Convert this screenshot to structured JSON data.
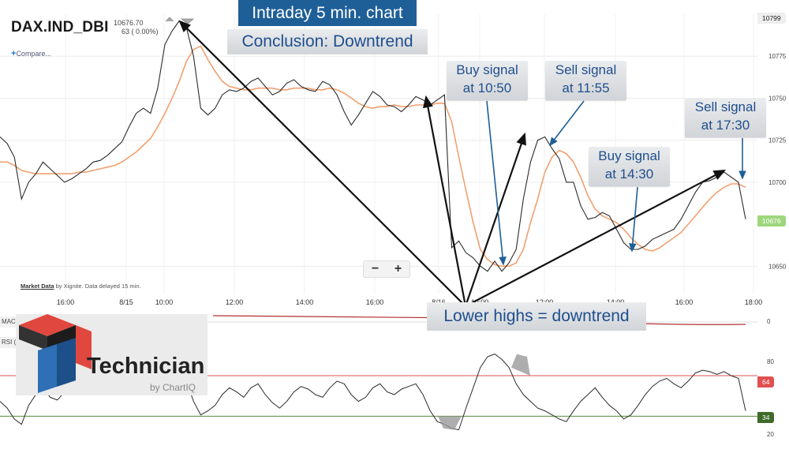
{
  "header": {
    "ticker": "DAX.IND_DBI",
    "quote_price": "10676.70",
    "quote_change": "63 ( 0.00%)",
    "compare_label": "Compare...",
    "market_data_label": "Market Data",
    "market_data_note": "by Xignite. Data delayed 15 min."
  },
  "annotations": {
    "title": "Intraday 5 min. chart",
    "conclusion": "Conclusion: Downtrend",
    "buy1": [
      "Buy signal",
      "at 10:50"
    ],
    "sell1": [
      "Sell signal",
      "at 11:55"
    ],
    "buy2": [
      "Buy signal",
      "at 14:30"
    ],
    "sell2": [
      "Sell signal",
      "at 17:30"
    ],
    "lower_highs": "Lower highs = downtrend"
  },
  "zoom": {
    "minus": "−",
    "plus": "+"
  },
  "logo": {
    "word": "Technician",
    "by": "by ChartIQ"
  },
  "indicators": {
    "macd_tag": "MAC",
    "rsi_tag": "RSI (",
    "macd_zero": "0",
    "rsi_80": "80",
    "rsi_20": "20",
    "rsi_64_badge": "64",
    "rsi_34_badge": "34"
  },
  "price_badges": {
    "top": "10799",
    "current": "10676"
  },
  "colors": {
    "price": "#2b2b2b",
    "ma": "#f0a070",
    "annotation_blue": "#1f5f97",
    "rsi_upper": "#e05050",
    "rsi_lower": "#5a8a3a",
    "current_badge": "#9ed67c",
    "macd": "#b03030"
  },
  "chart_data": {
    "type": "line",
    "title": "",
    "xlabel": "",
    "ylabel": "",
    "x_ticks": [
      "16:00",
      "8/15",
      "10:00",
      "12:00",
      "14:00",
      "16:00",
      "8/16",
      "10:00",
      "12:00",
      "14:00",
      "16:00",
      "18:00"
    ],
    "y_ticks": [
      10775,
      10750,
      10725,
      10700,
      10650
    ],
    "ylim": [
      10637,
      10800
    ],
    "series": [
      {
        "values": [
          10727,
          10723,
          10715,
          10690,
          10700,
          10705,
          10712,
          10708,
          10704,
          10700,
          10702,
          10705,
          10708,
          10712,
          10713,
          10716,
          10720,
          10724,
          10733,
          10741,
          10744,
          10741,
          10756,
          10782,
          10790,
          10796,
          10792,
          10775,
          10744,
          10740,
          10744,
          10752,
          10755,
          10754,
          10756,
          10760,
          10762,
          10757,
          10752,
          10754,
          10759,
          10761,
          10757,
          10755,
          10754,
          10760,
          10758,
          10752,
          10742,
          10734,
          10740,
          10747,
          10754,
          10751,
          10746,
          10745,
          10742,
          10746,
          10751,
          10749,
          10746,
          10749,
          10752,
          10661,
          10665,
          10658,
          10655,
          10650,
          10647,
          10653,
          10647,
          10652,
          10660,
          10690,
          10712,
          10725,
          10727,
          10720,
          10714,
          10700,
          10700,
          10686,
          10678,
          10679,
          10682,
          10680,
          10672,
          10664,
          10660,
          10660,
          10662,
          10666,
          10668,
          10670,
          10672,
          10678,
          10686,
          10694,
          10700,
          10701,
          10703,
          10706,
          10703,
          10700,
          10678
        ]
      },
      {
        "values": [
          10712,
          10712,
          10710,
          10707,
          10706,
          10705,
          10705,
          10705,
          10705,
          10705,
          10705,
          10706,
          10706,
          10707,
          10708,
          10709,
          10710,
          10712,
          10715,
          10718,
          10722,
          10726,
          10733,
          10741,
          10750,
          10760,
          10772,
          10779,
          10781,
          10773,
          10766,
          10760,
          10757,
          10756,
          10755,
          10755,
          10756,
          10756,
          10756,
          10755,
          10755,
          10756,
          10756,
          10756,
          10755,
          10755,
          10756,
          10755,
          10753,
          10750,
          10747,
          10745,
          10744,
          10745,
          10745,
          10746,
          10745,
          10745,
          10746,
          10746,
          10746,
          10747,
          10747,
          10736,
          10715,
          10695,
          10676,
          10660,
          10654,
          10651,
          10650,
          10650,
          10652,
          10660,
          10676,
          10690,
          10706,
          10715,
          10719,
          10717,
          10712,
          10703,
          10692,
          10684,
          10680,
          10678,
          10676,
          10672,
          10667,
          10663,
          10660,
          10659,
          10661,
          10664,
          10667,
          10670,
          10675,
          10680,
          10685,
          10690,
          10694,
          10697,
          10699,
          10699,
          10697
        ]
      }
    ],
    "rsi": {
      "ylim": [
        15,
        85
      ],
      "upper_band": 64,
      "lower_band": 34,
      "ticks": [
        80,
        20
      ],
      "values": [
        45,
        40,
        32,
        28,
        42,
        50,
        55,
        48,
        46,
        52,
        58,
        60,
        55,
        50,
        58,
        63,
        60,
        56,
        54,
        62,
        70,
        72,
        74,
        75,
        76,
        72,
        60,
        45,
        35,
        38,
        42,
        50,
        55,
        52,
        48,
        55,
        58,
        50,
        44,
        40,
        45,
        52,
        56,
        54,
        50,
        48,
        55,
        60,
        58,
        50,
        45,
        48,
        55,
        58,
        52,
        50,
        54,
        56,
        58,
        50,
        38,
        30,
        28,
        25,
        24,
        40,
        55,
        70,
        78,
        80,
        76,
        70,
        58,
        50,
        45,
        40,
        38,
        35,
        32,
        30,
        38,
        45,
        50,
        55,
        48,
        42,
        38,
        32,
        35,
        42,
        50,
        56,
        60,
        62,
        58,
        55,
        60,
        66,
        68,
        67,
        65,
        67,
        64,
        62,
        38
      ]
    }
  }
}
